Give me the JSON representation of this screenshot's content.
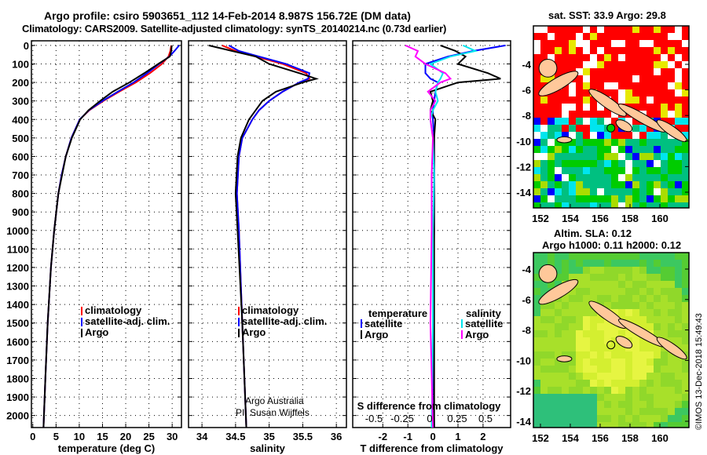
{
  "title_line1": "Argo profile: csiro 5903651_112 14-Feb-2014 8.987S 156.72E (DM data)",
  "title_line2": "Climatology: CARS2009. Satellite-adjusted climatology: synTS_20140214.nc (0.73d earlier)",
  "map1_title": "sat. SST: 33.9 Argo: 29.8",
  "map2_title1": "Altim. SLA: 0.12",
  "map2_title2": "Argo h1000: 0.11 h2000: 0.12",
  "credit1": "Argo Australia",
  "credit2": "PI: Susan Wijffels",
  "watermark": "©IMOS 13-Dec-2018 15:49:43",
  "colors": {
    "clim": "#ff0000",
    "sat": "#0000ff",
    "argo": "#000000",
    "sal_sat": "#00e5ee",
    "sal_argo": "#ff00ff"
  },
  "chart_data": [
    {
      "type": "line",
      "xlabel": "temperature (deg C)",
      "xlim": [
        -0.3,
        32
      ],
      "ylim": [
        2065,
        -25
      ],
      "xticks": [
        0,
        5,
        10,
        15,
        20,
        25,
        30
      ],
      "yticks": [
        0,
        100,
        200,
        300,
        400,
        500,
        600,
        700,
        800,
        900,
        1000,
        1100,
        1200,
        1300,
        1400,
        1500,
        1600,
        1700,
        1800,
        1900,
        2000
      ],
      "legend": [
        "climatology",
        "satellite-adj. clim.",
        "Argo"
      ],
      "depth": [
        0,
        30,
        60,
        100,
        150,
        200,
        250,
        300,
        350,
        400,
        500,
        600,
        700,
        800,
        1000,
        1200,
        1500,
        1800,
        2065
      ],
      "series": [
        {
          "name": "climatology",
          "color": "#ff0000",
          "values": [
            29.8,
            29.6,
            29.2,
            27.8,
            25.2,
            22.2,
            18.6,
            15.2,
            12.2,
            10.1,
            8.3,
            7.1,
            6.2,
            5.5,
            4.6,
            3.9,
            3.2,
            2.7,
            2.3
          ]
        },
        {
          "name": "satellite-adj. clim.",
          "color": "#0000ff",
          "values": [
            31.5,
            30.5,
            29.4,
            27.2,
            24.6,
            21.7,
            18.3,
            15.0,
            12.1,
            10.1,
            8.3,
            7.1,
            6.2,
            5.5,
            4.6,
            3.9,
            3.2,
            2.7,
            2.3
          ]
        },
        {
          "name": "Argo",
          "color": "#000000",
          "values": [
            29.9,
            29.8,
            29.5,
            27.0,
            24.0,
            20.8,
            17.2,
            14.5,
            12.0,
            10.2,
            8.4,
            7.1,
            6.3,
            5.5,
            4.6,
            3.9,
            3.2,
            2.7,
            2.3
          ]
        }
      ]
    },
    {
      "type": "line",
      "xlabel": "salinity",
      "xlim": [
        33.8,
        36.15
      ],
      "ylim": [
        2065,
        -25
      ],
      "xticks": [
        34,
        34.5,
        35,
        35.5,
        36
      ],
      "legend": [
        "climatology",
        "satellite-adj. clim.",
        "Argo"
      ],
      "depth": [
        0,
        30,
        60,
        100,
        150,
        180,
        200,
        250,
        300,
        350,
        400,
        500,
        600,
        800,
        1000,
        1500,
        2065
      ],
      "series": [
        {
          "name": "climatology",
          "color": "#ff0000",
          "values": [
            34.3,
            34.5,
            34.8,
            35.2,
            35.55,
            35.6,
            35.45,
            35.2,
            35.0,
            34.85,
            34.75,
            34.6,
            34.55,
            34.52,
            34.55,
            34.6,
            34.66
          ]
        },
        {
          "name": "satellite-adj. clim.",
          "color": "#0000ff",
          "values": [
            34.4,
            34.55,
            34.85,
            35.25,
            35.6,
            35.58,
            35.45,
            35.2,
            35.0,
            34.85,
            34.75,
            34.6,
            34.55,
            34.52,
            34.55,
            34.6,
            34.66
          ]
        },
        {
          "name": "Argo",
          "color": "#000000",
          "values": [
            34.1,
            34.45,
            34.8,
            35.0,
            35.45,
            35.7,
            35.5,
            35.1,
            34.9,
            34.8,
            34.7,
            34.58,
            34.53,
            34.5,
            34.53,
            34.6,
            34.66
          ]
        }
      ]
    },
    {
      "type": "line",
      "xlabel": "T difference from climatology",
      "xlabel2": "S difference from climatology",
      "xlim": [
        -3.2,
        3.1
      ],
      "ylim": [
        2065,
        -25
      ],
      "xticks": [
        -2,
        -1,
        0,
        1,
        2
      ],
      "xticks2": [
        "-0.5",
        "-0.25",
        "0",
        "0.25",
        "0.5"
      ],
      "legend_t": [
        "temperature",
        "satellite",
        "Argo"
      ],
      "legend_s": [
        "salinity",
        "satellite",
        "Argo"
      ],
      "depth": [
        0,
        30,
        60,
        100,
        150,
        180,
        200,
        250,
        300,
        350,
        400,
        500,
        700,
        1000,
        1500,
        2065
      ],
      "series": [
        {
          "name": "T satellite",
          "color": "#0000ff",
          "values": [
            2.9,
            1.6,
            0.6,
            -0.3,
            -0.3,
            -0.1,
            0.2,
            0.1,
            0.05,
            0.0,
            0.0,
            0.05,
            0.05,
            0.05,
            0.0,
            0.05
          ]
        },
        {
          "name": "T Argo",
          "color": "#000000",
          "values": [
            0.3,
            0.9,
            1.3,
            1.0,
            2.2,
            2.7,
            1.0,
            -0.1,
            0.0,
            -0.1,
            0.1,
            0.05,
            0.05,
            0.05,
            0.05,
            0.05
          ]
        },
        {
          "name": "S satellite",
          "color": "#00e5ee",
          "values": [
            1.2,
            1.7,
            0.7,
            -0.1,
            0.4,
            0.3,
            0.2,
            0.1,
            0.2,
            0.0,
            -0.1,
            0.0,
            0.05,
            0.0,
            0.0,
            -0.05
          ]
        },
        {
          "name": "S Argo",
          "color": "#ff00ff",
          "values": [
            -1.1,
            -0.6,
            -0.7,
            -0.3,
            0.5,
            0.7,
            0.3,
            -0.2,
            0.1,
            -0.1,
            -0.1,
            0.0,
            -0.05,
            -0.05,
            -0.1,
            0.0
          ]
        }
      ]
    },
    {
      "type": "heatmap",
      "title": "sat. SST: 33.9 Argo: 29.8",
      "xticks": [
        152,
        154,
        156,
        158,
        160
      ],
      "yticks": [
        -4,
        -6,
        -8,
        -10,
        -12,
        -14
      ],
      "argo_lon": 156.72,
      "argo_lat": -8.987
    },
    {
      "type": "heatmap",
      "title": "Altim. SLA: 0.12",
      "xticks": [
        152,
        154,
        156,
        158,
        160
      ],
      "yticks": [
        -4,
        -6,
        -8,
        -10,
        -12,
        -14
      ],
      "argo_lon": 156.72,
      "argo_lat": -8.987
    }
  ]
}
